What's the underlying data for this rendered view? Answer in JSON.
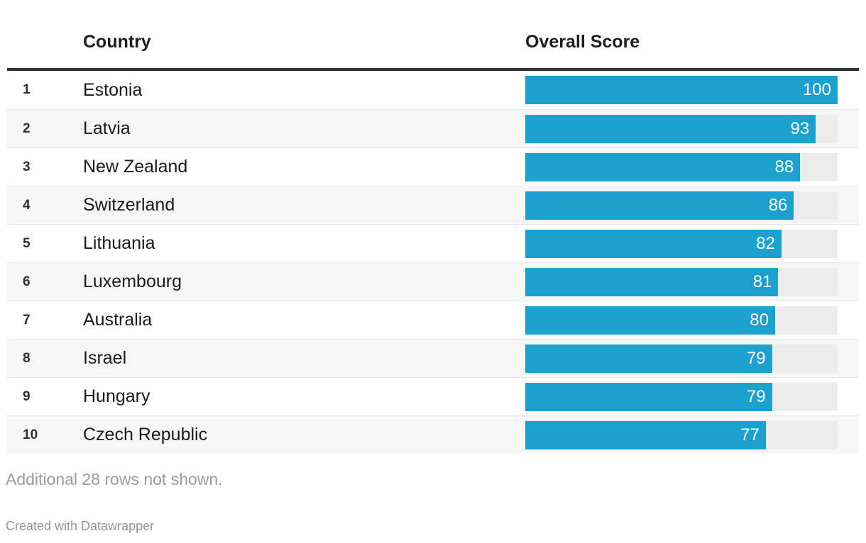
{
  "chart_data": {
    "type": "bar",
    "title": "",
    "categories": [
      "Estonia",
      "Latvia",
      "New Zealand",
      "Switzerland",
      "Lithuania",
      "Luxembourg",
      "Australia",
      "Israel",
      "Hungary",
      "Czech Republic"
    ],
    "ranks": [
      1,
      2,
      3,
      4,
      5,
      6,
      7,
      8,
      9,
      10
    ],
    "values": [
      100,
      93,
      88,
      86,
      82,
      81,
      80,
      79,
      79,
      77
    ],
    "xlabel": "",
    "ylabel": "Overall Score",
    "xlim": [
      0,
      100
    ],
    "grid": false,
    "legend": "none",
    "orientation": "horizontal",
    "bar_color": "#1ca1ce",
    "track_color": "#ececec"
  },
  "table": {
    "headers": {
      "rank": "",
      "country": "Country",
      "score": "Overall Score"
    },
    "rows": [
      {
        "rank": "1",
        "country": "Estonia",
        "score": "100"
      },
      {
        "rank": "2",
        "country": "Latvia",
        "score": "93"
      },
      {
        "rank": "3",
        "country": "New Zealand",
        "score": "88"
      },
      {
        "rank": "4",
        "country": "Switzerland",
        "score": "86"
      },
      {
        "rank": "5",
        "country": "Lithuania",
        "score": "82"
      },
      {
        "rank": "6",
        "country": "Luxembourg",
        "score": "81"
      },
      {
        "rank": "7",
        "country": "Australia",
        "score": "80"
      },
      {
        "rank": "8",
        "country": "Israel",
        "score": "79"
      },
      {
        "rank": "9",
        "country": "Hungary",
        "score": "79"
      },
      {
        "rank": "10",
        "country": "Czech Republic",
        "score": "77"
      }
    ]
  },
  "footer": {
    "note": "Additional 28 rows not shown.",
    "attribution": "Created with Datawrapper"
  },
  "colors": {
    "bar": "#1ca1ce",
    "track": "#ececec",
    "stripe": "#f6f6f6",
    "header_rule": "#333333",
    "text": "#1a1a1a",
    "muted_text": "#9b9b9b"
  }
}
